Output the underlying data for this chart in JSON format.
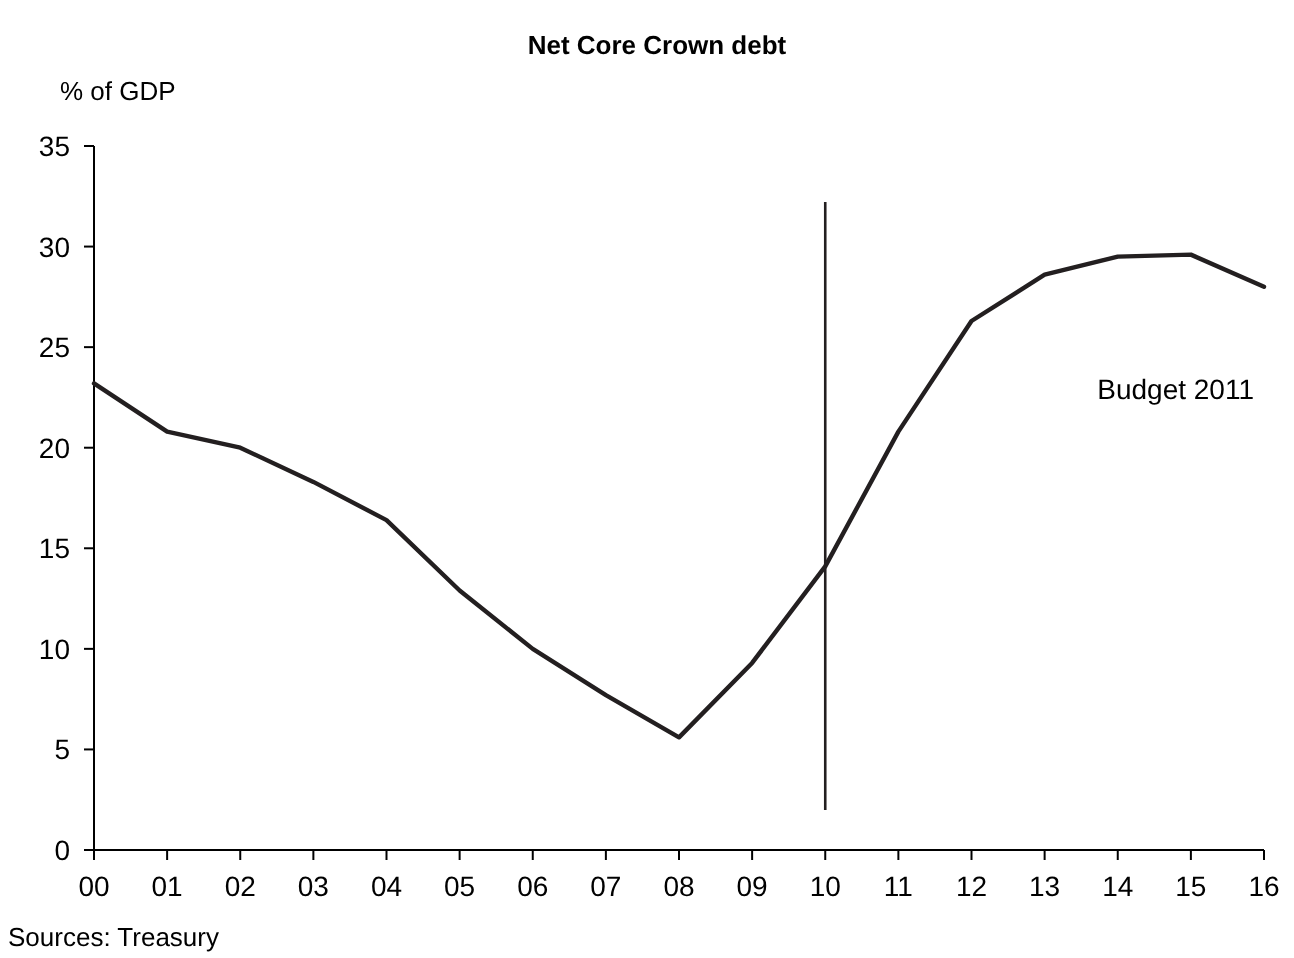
{
  "chart_data": {
    "type": "line",
    "title": "Net Core Crown debt",
    "ylabel": "% of GDP",
    "categories": [
      "00",
      "01",
      "02",
      "03",
      "04",
      "05",
      "06",
      "07",
      "08",
      "09",
      "10",
      "11",
      "12",
      "13",
      "14",
      "15",
      "16"
    ],
    "series": [
      {
        "color": "#231f20",
        "values": [
          23.2,
          20.8,
          20.0,
          18.3,
          16.4,
          12.9,
          10.0,
          7.7,
          5.6,
          9.3,
          14.1,
          20.8,
          26.3,
          28.6,
          29.5,
          29.6,
          28.0
        ]
      }
    ],
    "ylim": [
      0,
      35
    ],
    "yticks": [
      0,
      5,
      10,
      15,
      20,
      25,
      30,
      35
    ],
    "grid": false,
    "marker": "none",
    "line_style": "solid",
    "ref_lines": [
      {
        "axis": "x",
        "value": "10",
        "label": "Budget 2011",
        "color": "#231f20"
      }
    ],
    "annotations": [
      "Sources: Treasury"
    ]
  }
}
